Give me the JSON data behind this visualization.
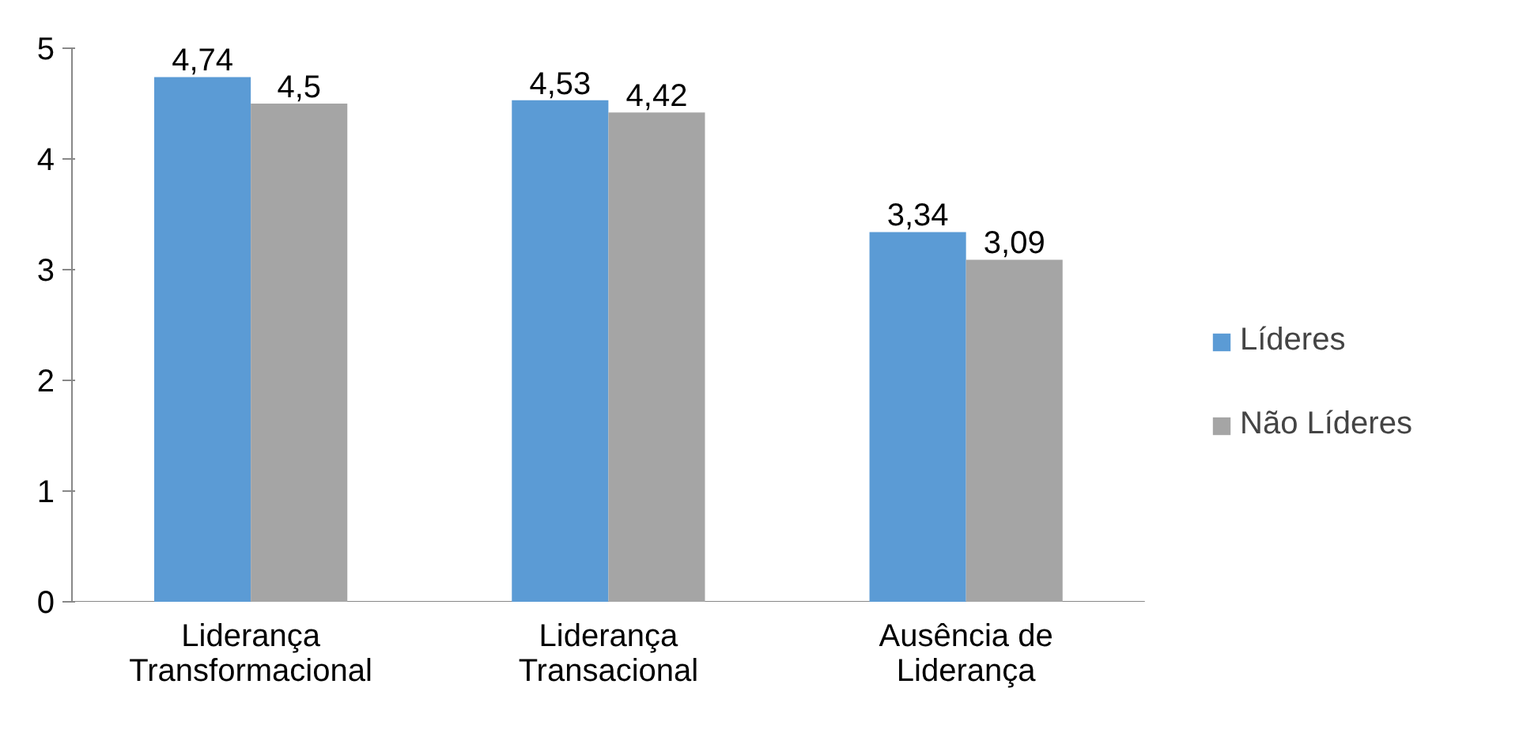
{
  "chart_data": {
    "type": "bar",
    "categories": [
      "Liderança\nTransformacional",
      "Liderança\nTransacional",
      "Ausência de\nLiderança"
    ],
    "series": [
      {
        "name": "Líderes",
        "color": "#5b9bd5",
        "values": [
          4.74,
          4.53,
          3.34
        ],
        "value_labels": [
          "4,74",
          "4,53",
          "3,34"
        ]
      },
      {
        "name": "Não Líderes",
        "color": "#a5a5a5",
        "values": [
          4.5,
          4.42,
          3.09
        ],
        "value_labels": [
          "4,5",
          "4,42",
          "3,09"
        ]
      }
    ],
    "ylim": [
      0,
      5
    ],
    "yticks": [
      0,
      1,
      2,
      3,
      4,
      5
    ],
    "grid": false,
    "legend": "right"
  }
}
